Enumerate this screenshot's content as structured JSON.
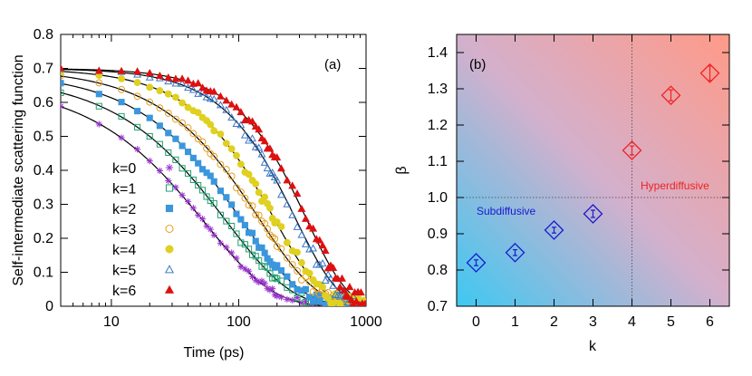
{
  "colors": {
    "k0": "#9933cc",
    "k1": "#20a070",
    "k2": "#3a96dd",
    "k3": "#e6a020",
    "k4": "#e0d020",
    "k5": "#3a78c8",
    "k6": "#dd1111",
    "fit": "#000000",
    "marker_b": "#1a1acc",
    "sub_text": "#1a1acc",
    "hyper_text": "#ee2222",
    "bg_blue": "#3ec8f2",
    "bg_red": "#ff9a88",
    "bg_mid": "#d4b0cc"
  },
  "chart_data": [
    {
      "type": "scatter",
      "panel_label": "(a)",
      "xscale": "log",
      "xlabel": "Time (ps)",
      "ylabel": "Self-intermediate scattering function",
      "xlim": [
        4,
        1000
      ],
      "ylim": [
        0,
        0.8
      ],
      "xticks": [
        10,
        100,
        1000
      ],
      "xtick_labels": [
        "10",
        "100",
        "1000"
      ],
      "yticks": [
        0,
        0.1,
        0.2,
        0.3,
        0.4,
        0.5,
        0.6,
        0.7,
        0.8
      ],
      "ytick_labels": [
        "0",
        "0.1",
        "0.2",
        "0.3",
        "0.4",
        "0.5",
        "0.6",
        "0.7",
        "0.8"
      ],
      "legend_position": "left",
      "series": [
        {
          "name": "k=0",
          "marker": "star",
          "A": 0.66,
          "tau": 55,
          "beta": 0.82,
          "tmax": 1000
        },
        {
          "name": "k=1",
          "marker": "square-open",
          "A": 0.68,
          "tau": 80,
          "beta": 0.85,
          "tmax": 1000
        },
        {
          "name": "k=2",
          "marker": "square-filled",
          "A": 0.69,
          "tau": 105,
          "beta": 0.91,
          "tmax": 1000
        },
        {
          "name": "k=3",
          "marker": "circle-open",
          "A": 0.7,
          "tau": 145,
          "beta": 0.95,
          "tmax": 1000
        },
        {
          "name": "k=4",
          "marker": "circle-filled",
          "A": 0.7,
          "tau": 190,
          "beta": 1.13,
          "tmax": 1000
        },
        {
          "name": "k=5",
          "marker": "triangle-open",
          "A": 0.7,
          "tau": 280,
          "beta": 1.28,
          "tmax": 1000
        },
        {
          "name": "k=6",
          "marker": "triangle-filled",
          "A": 0.7,
          "tau": 340,
          "beta": 1.34,
          "tmax": 1000
        }
      ]
    },
    {
      "type": "scatter",
      "panel_label": "(b)",
      "xlabel": "k",
      "ylabel": "β",
      "xlim": [
        -0.5,
        6.5
      ],
      "ylim": [
        0.7,
        1.45
      ],
      "xticks": [
        0,
        1,
        2,
        3,
        4,
        5,
        6
      ],
      "xtick_labels": [
        "0",
        "1",
        "2",
        "3",
        "4",
        "5",
        "6"
      ],
      "yticks": [
        0.7,
        0.8,
        0.9,
        1.0,
        1.1,
        1.2,
        1.3,
        1.4
      ],
      "ytick_labels": [
        "0.7",
        "0.8",
        "0.9",
        "1.0",
        "1.1",
        "1.2",
        "1.3",
        "1.4"
      ],
      "reference_lines": {
        "x": 4,
        "y": 1.0
      },
      "annotations": {
        "subdiffusive": "Subdiffusive",
        "hyperdiffusive": "Hyperdiffusive"
      },
      "series": [
        {
          "name": "beta",
          "marker": "diamond-open",
          "x": [
            0,
            1,
            2,
            3,
            4,
            5,
            6
          ],
          "y": [
            0.82,
            0.848,
            0.91,
            0.955,
            1.13,
            1.282,
            1.343
          ],
          "err": [
            0.008,
            0.008,
            0.008,
            0.01,
            0.012,
            0.015,
            0.02
          ]
        }
      ]
    }
  ]
}
